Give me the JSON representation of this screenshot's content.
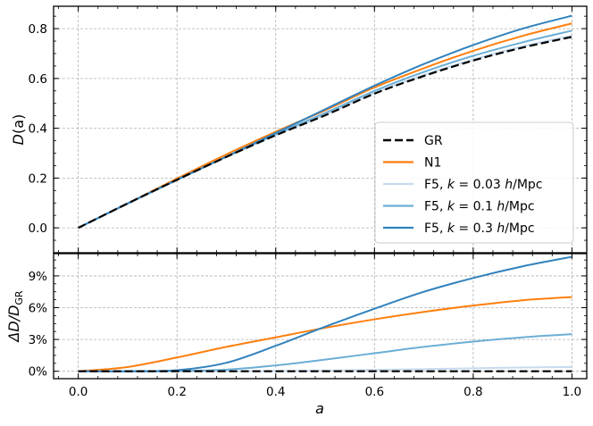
{
  "chart_data": [
    {
      "type": "line",
      "panel": "top",
      "ylabel_main": "D",
      "ylabel_arg": "(a)",
      "xlim": [
        -0.05,
        1.03
      ],
      "ylim": [
        -0.1,
        0.89
      ],
      "yticks": [
        0.0,
        0.2,
        0.4,
        0.6,
        0.8
      ],
      "ytick_labels": [
        "0.0",
        "0.2",
        "0.4",
        "0.6",
        "0.8"
      ],
      "xticks": [
        0.0,
        0.2,
        0.4,
        0.6,
        0.8,
        1.0
      ],
      "grid": true,
      "legend_placement": "lower-right",
      "x": [
        0.0,
        0.1,
        0.2,
        0.3,
        0.4,
        0.5,
        0.6,
        0.7,
        0.8,
        0.9,
        1.0
      ],
      "series": [
        {
          "name": "GR",
          "color": "#000000",
          "dash": "dashed",
          "values": [
            0.0,
            0.098,
            0.193,
            0.285,
            0.372,
            0.452,
            0.539,
            0.61,
            0.672,
            0.724,
            0.767
          ]
        },
        {
          "name": "N1",
          "color": "#ff7f0e",
          "dash": "solid",
          "values": [
            0.0,
            0.098,
            0.198,
            0.295,
            0.386,
            0.472,
            0.564,
            0.641,
            0.711,
            0.771,
            0.821
          ]
        },
        {
          "name": "F5, k = 0.03 h/Mpc",
          "color": "#c6dbef",
          "dash": "solid",
          "values": [
            0.0,
            0.098,
            0.193,
            0.285,
            0.372,
            0.453,
            0.542,
            0.614,
            0.676,
            0.729,
            0.772
          ]
        },
        {
          "name": "F5, k = 0.1 h/Mpc",
          "color": "#6baed6",
          "dash": "solid",
          "values": [
            0.0,
            0.098,
            0.193,
            0.286,
            0.376,
            0.461,
            0.55,
            0.626,
            0.691,
            0.745,
            0.792
          ]
        },
        {
          "name": "F5, k = 0.3 h/Mpc",
          "color": "#3182bd",
          "dash": "solid",
          "values": [
            0.0,
            0.098,
            0.193,
            0.286,
            0.381,
            0.476,
            0.571,
            0.658,
            0.734,
            0.8,
            0.852
          ]
        }
      ]
    },
    {
      "type": "line",
      "panel": "bottom",
      "xlabel": "a",
      "ylabel_main": "ΔD/D",
      "ylabel_sub": "GR",
      "xlim": [
        -0.05,
        1.03
      ],
      "ylim": [
        -0.7,
        11.1
      ],
      "yticks": [
        0,
        3,
        6,
        9
      ],
      "ytick_labels": [
        "0%",
        "3%",
        "6%",
        "9%"
      ],
      "xticks": [
        0.0,
        0.2,
        0.4,
        0.6,
        0.8,
        1.0
      ],
      "xtick_labels": [
        "0.0",
        "0.2",
        "0.4",
        "0.6",
        "0.8",
        "1.0"
      ],
      "grid": true,
      "x": [
        0.0,
        0.1,
        0.2,
        0.3,
        0.4,
        0.5,
        0.6,
        0.7,
        0.8,
        0.9,
        1.0
      ],
      "series": [
        {
          "name": "GR",
          "color": "#000000",
          "dash": "dashed",
          "values": [
            0,
            0,
            0,
            0,
            0,
            0,
            0,
            0,
            0,
            0,
            0
          ]
        },
        {
          "name": "N1",
          "color": "#ff7f0e",
          "dash": "solid",
          "values": [
            0.0,
            0.4,
            1.3,
            2.3,
            3.2,
            4.1,
            4.9,
            5.6,
            6.2,
            6.7,
            7.0
          ]
        },
        {
          "name": "F5, k = 0.03 h/Mpc",
          "color": "#c6dbef",
          "dash": "solid",
          "values": [
            0.0,
            0.0,
            0.0,
            0.01,
            0.03,
            0.06,
            0.12,
            0.2,
            0.28,
            0.35,
            0.4
          ]
        },
        {
          "name": "F5, k = 0.1 h/Mpc",
          "color": "#6baed6",
          "dash": "solid",
          "values": [
            0.0,
            0.0,
            0.02,
            0.15,
            0.55,
            1.1,
            1.7,
            2.3,
            2.8,
            3.2,
            3.5
          ]
        },
        {
          "name": "F5, k = 0.3 h/Mpc",
          "color": "#3182bd",
          "dash": "solid",
          "values": [
            0.0,
            0.0,
            0.1,
            0.8,
            2.4,
            4.2,
            5.9,
            7.5,
            8.8,
            9.9,
            10.8
          ]
        }
      ]
    }
  ],
  "legend": [
    {
      "prefix": "GR",
      "k": "",
      "unit_h": "",
      "unit_rest": "",
      "color": "#000000",
      "dash": "dashed"
    },
    {
      "prefix": "N1",
      "k": "",
      "unit_h": "",
      "unit_rest": "",
      "color": "#ff7f0e",
      "dash": "solid"
    },
    {
      "prefix": "F5, ",
      "k": "k",
      "eq": " = 0.03 ",
      "unit_h": "h",
      "unit_rest": "/Mpc",
      "color": "#c6dbef",
      "dash": "solid"
    },
    {
      "prefix": "F5, ",
      "k": "k",
      "eq": " = 0.1 ",
      "unit_h": "h",
      "unit_rest": "/Mpc",
      "color": "#6baed6",
      "dash": "solid"
    },
    {
      "prefix": "F5, ",
      "k": "k",
      "eq": " = 0.3 ",
      "unit_h": "h",
      "unit_rest": "/Mpc",
      "color": "#3182bd",
      "dash": "solid"
    }
  ]
}
